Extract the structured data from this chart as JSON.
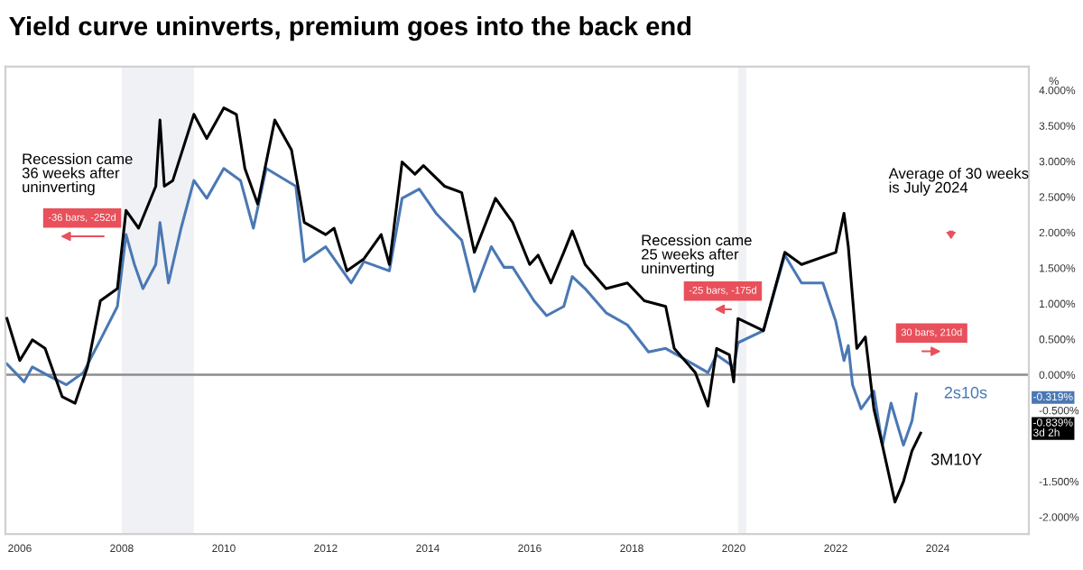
{
  "chart_data": {
    "type": "line",
    "title": "Yield curve uninverts, premium goes into the back end",
    "ylabel": "%",
    "series": [
      {
        "name": "3M10Y",
        "color": "#000000",
        "x": [
          "2005-10",
          "2006-01",
          "2006-04",
          "2006-07",
          "2006-11",
          "2007-02",
          "2007-05",
          "2007-08",
          "2007-12",
          "2008-02",
          "2008-05",
          "2008-09",
          "2008-10",
          "2008-11",
          "2009-01",
          "2009-06",
          "2009-09",
          "2010-01",
          "2010-04",
          "2010-06",
          "2010-09",
          "2011-01",
          "2011-05",
          "2011-08",
          "2012-01",
          "2012-03",
          "2012-06",
          "2012-10",
          "2013-02",
          "2013-04",
          "2013-07",
          "2013-10",
          "2013-12",
          "2014-05",
          "2014-09",
          "2014-12",
          "2015-05",
          "2015-09",
          "2016-01",
          "2016-03",
          "2016-06",
          "2016-09",
          "2016-11",
          "2017-02",
          "2017-07",
          "2017-12",
          "2018-04",
          "2018-09",
          "2018-11",
          "2019-04",
          "2019-07",
          "2019-09",
          "2019-12",
          "2020-01",
          "2020-02",
          "2020-08",
          "2021-01",
          "2021-05",
          "2022-01",
          "2022-03",
          "2022-04",
          "2022-06",
          "2022-08",
          "2022-10",
          "2022-12",
          "2023-03",
          "2023-05",
          "2023-07",
          "2023-09"
        ],
        "values": [
          0.79,
          0.2,
          0.49,
          0.37,
          -0.31,
          -0.4,
          0.11,
          1.04,
          1.21,
          2.31,
          2.06,
          2.65,
          3.58,
          2.65,
          2.73,
          3.66,
          3.32,
          3.75,
          3.66,
          2.9,
          2.4,
          3.58,
          3.16,
          2.14,
          1.97,
          2.06,
          1.46,
          1.63,
          1.97,
          1.55,
          2.99,
          2.82,
          2.94,
          2.65,
          2.56,
          1.72,
          2.48,
          2.14,
          1.55,
          1.68,
          1.29,
          1.72,
          2.02,
          1.55,
          1.21,
          1.29,
          1.04,
          0.96,
          0.37,
          0.03,
          -0.44,
          0.37,
          0.28,
          -0.1,
          0.79,
          0.62,
          1.72,
          1.55,
          1.72,
          2.27,
          1.8,
          0.37,
          0.53,
          -0.48,
          -0.99,
          -1.79,
          -1.5,
          -1.07,
          -0.82
        ]
      },
      {
        "name": "2s10s",
        "color": "#4a78b4",
        "x": [
          "2005-10",
          "2006-02",
          "2006-04",
          "2006-08",
          "2006-12",
          "2007-04",
          "2007-08",
          "2007-12",
          "2008-02",
          "2008-04",
          "2008-06",
          "2008-09",
          "2008-10",
          "2008-12",
          "2009-03",
          "2009-06",
          "2009-09",
          "2010-01",
          "2010-05",
          "2010-08",
          "2010-11",
          "2011-06",
          "2011-08",
          "2012-01",
          "2012-03",
          "2012-07",
          "2012-10",
          "2013-04",
          "2013-07",
          "2013-11",
          "2014-03",
          "2014-09",
          "2014-12",
          "2015-04",
          "2015-07",
          "2015-09",
          "2016-02",
          "2016-05",
          "2016-09",
          "2016-11",
          "2017-02",
          "2017-07",
          "2017-12",
          "2018-05",
          "2018-09",
          "2019-02",
          "2019-07",
          "2019-09",
          "2020-01",
          "2020-02",
          "2020-08",
          "2021-01",
          "2021-05",
          "2021-10",
          "2022-01",
          "2022-03",
          "2022-04",
          "2022-05",
          "2022-07",
          "2022-10",
          "2022-12",
          "2023-02",
          "2023-05",
          "2023-07",
          "2023-08"
        ],
        "values": [
          0.15,
          -0.1,
          0.11,
          -0.02,
          -0.14,
          0.03,
          0.49,
          0.96,
          1.97,
          1.55,
          1.21,
          1.55,
          2.14,
          1.29,
          2.06,
          2.73,
          2.48,
          2.9,
          2.73,
          2.06,
          2.9,
          2.65,
          1.59,
          1.8,
          1.63,
          1.29,
          1.59,
          1.46,
          2.48,
          2.61,
          2.27,
          1.89,
          1.17,
          1.8,
          1.51,
          1.51,
          1.04,
          0.83,
          0.96,
          1.38,
          1.21,
          0.87,
          0.7,
          0.32,
          0.37,
          0.2,
          0.03,
          0.28,
          0.11,
          0.45,
          0.62,
          1.68,
          1.29,
          1.29,
          0.75,
          0.2,
          0.41,
          -0.14,
          -0.48,
          -0.23,
          -0.99,
          -0.4,
          -0.99,
          -0.65,
          -0.27
        ]
      }
    ],
    "xlim": [
      "2005-09-20",
      "2025-10-15"
    ],
    "xticks": [
      {
        "value": "2006",
        "label": "2006"
      },
      {
        "value": "2008",
        "label": "2008"
      },
      {
        "value": "2010",
        "label": "2010"
      },
      {
        "value": "2012",
        "label": "2012"
      },
      {
        "value": "2014",
        "label": "2014"
      },
      {
        "value": "2016",
        "label": "2016"
      },
      {
        "value": "2018",
        "label": "2018"
      },
      {
        "value": "2020",
        "label": "2020"
      },
      {
        "value": "2022",
        "label": "2022"
      },
      {
        "value": "2024",
        "label": "2024"
      }
    ],
    "ylim": [
      -2.24,
      4.33
    ],
    "yticks": [
      {
        "value": -2,
        "label": "-2.000%"
      },
      {
        "value": -1.5,
        "label": "-1.500%"
      },
      {
        "value": -0.5,
        "label": "-0.500%"
      },
      {
        "value": 0,
        "label": "0.000%"
      },
      {
        "value": 0.5,
        "label": "0.500%"
      },
      {
        "value": 1,
        "label": "1.000%"
      },
      {
        "value": 1.5,
        "label": "1.500%"
      },
      {
        "value": 2,
        "label": "2.000%"
      },
      {
        "value": 2.5,
        "label": "2.500%"
      },
      {
        "value": 3,
        "label": "3.000%"
      },
      {
        "value": 3.5,
        "label": "3.500%"
      },
      {
        "value": 4,
        "label": "4.000%"
      }
    ],
    "ref_lines": [
      {
        "axis": "y",
        "value": 0,
        "color": "#8c8c8c"
      }
    ],
    "bands": [
      {
        "axis": "x",
        "from": "2008-01",
        "to": "2009-06",
        "color": "#f0f1f5"
      },
      {
        "axis": "x",
        "from": "2020-02",
        "to": "2020-04",
        "color": "#f0f1f5"
      }
    ],
    "annotations": [
      "Recession came\n36 weeks after\nuninverting",
      "Recession came\n25 weeks after\nuninverting",
      "Average of 30 weeks\nis July 2024",
      "-36 bars, -252d",
      "-25 bars, -175d",
      "30 bars, 210d",
      "-0.319%",
      "-0.839%\n3d 2h"
    ],
    "grid": false,
    "legend": false,
    "line_style": "solid",
    "marker": "none"
  }
}
